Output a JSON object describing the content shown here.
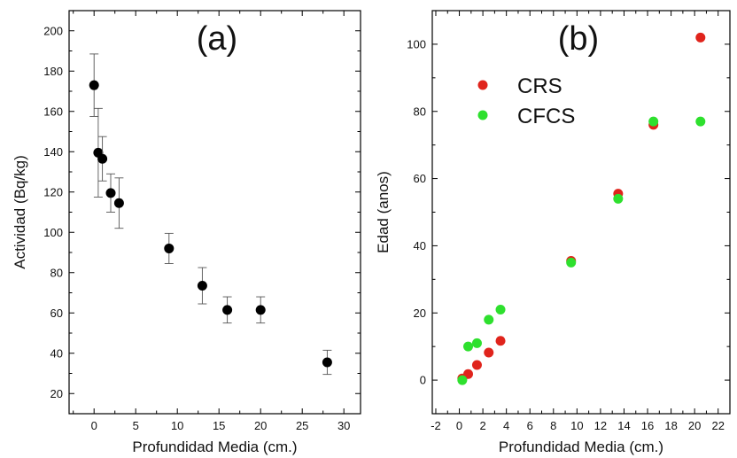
{
  "chart_data": [
    {
      "type": "scatter",
      "panel_label": "(a)",
      "xlabel": "Profundidad Media (cm.)",
      "ylabel": "Actividad (Bq/kg)",
      "xlim": [
        -3,
        32
      ],
      "ylim": [
        10,
        210
      ],
      "xticks": [
        "0",
        "5",
        "10",
        "15",
        "20",
        "25",
        "30"
      ],
      "yticks": [
        "20",
        "40",
        "60",
        "80",
        "100",
        "120",
        "140",
        "160",
        "180",
        "200"
      ],
      "marker_color": "#000000",
      "series": [
        {
          "points": [
            {
              "x": 0,
              "y": 173,
              "err": 15.5
            },
            {
              "x": 0.5,
              "y": 139.5,
              "err": 22
            },
            {
              "x": 1,
              "y": 136.5,
              "err": 11
            },
            {
              "x": 2,
              "y": 119.5,
              "err": 9.5
            },
            {
              "x": 3,
              "y": 114.5,
              "err": 12.5
            },
            {
              "x": 9,
              "y": 92,
              "err": 7.5
            },
            {
              "x": 13,
              "y": 73.5,
              "err": 9
            },
            {
              "x": 16,
              "y": 61.5,
              "err": 6.5
            },
            {
              "x": 20,
              "y": 61.5,
              "err": 6.5
            },
            {
              "x": 28,
              "y": 35.5,
              "err": 6
            }
          ]
        }
      ]
    },
    {
      "type": "scatter",
      "panel_label": "(b)",
      "xlabel": "Profundidad Media (cm.)",
      "ylabel": "Edad (anos)",
      "xlim": [
        -2.3,
        23
      ],
      "ylim": [
        -10,
        110
      ],
      "xticks": [
        "-2",
        "0",
        "2",
        "4",
        "6",
        "8",
        "10",
        "12",
        "14",
        "16",
        "18",
        "20",
        "22"
      ],
      "yticks": [
        "0",
        "20",
        "40",
        "60",
        "80",
        "100"
      ],
      "legend_position": "upper-left",
      "series": [
        {
          "name": "CRS",
          "color": "#e0241c",
          "points": [
            {
              "x": 0.25,
              "y": 0.5
            },
            {
              "x": 0.75,
              "y": 1.8
            },
            {
              "x": 1.5,
              "y": 4.5
            },
            {
              "x": 2.5,
              "y": 8.2
            },
            {
              "x": 3.5,
              "y": 11.7
            },
            {
              "x": 9.5,
              "y": 35.5
            },
            {
              "x": 13.5,
              "y": 55.5
            },
            {
              "x": 16.5,
              "y": 76
            },
            {
              "x": 20.5,
              "y": 102
            }
          ]
        },
        {
          "name": "CFCS",
          "color": "#2ee02e",
          "points": [
            {
              "x": 0.25,
              "y": 0
            },
            {
              "x": 0.75,
              "y": 10
            },
            {
              "x": 1.5,
              "y": 11
            },
            {
              "x": 2.5,
              "y": 18
            },
            {
              "x": 3.5,
              "y": 21
            },
            {
              "x": 9.5,
              "y": 35
            },
            {
              "x": 13.5,
              "y": 54
            },
            {
              "x": 16.5,
              "y": 77
            },
            {
              "x": 20.5,
              "y": 77
            }
          ]
        }
      ]
    }
  ]
}
